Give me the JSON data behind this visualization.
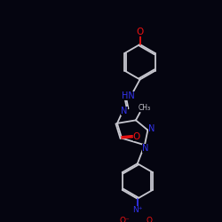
{
  "bg": "#050510",
  "bc": "#c8c8d0",
  "nc": "#3333ee",
  "oc": "#ee1111",
  "lw": 1.3,
  "fs": 7.0,
  "figsize": [
    2.5,
    2.5
  ],
  "dpi": 100,
  "xlim": [
    0,
    10
  ],
  "ylim": [
    0,
    10
  ]
}
